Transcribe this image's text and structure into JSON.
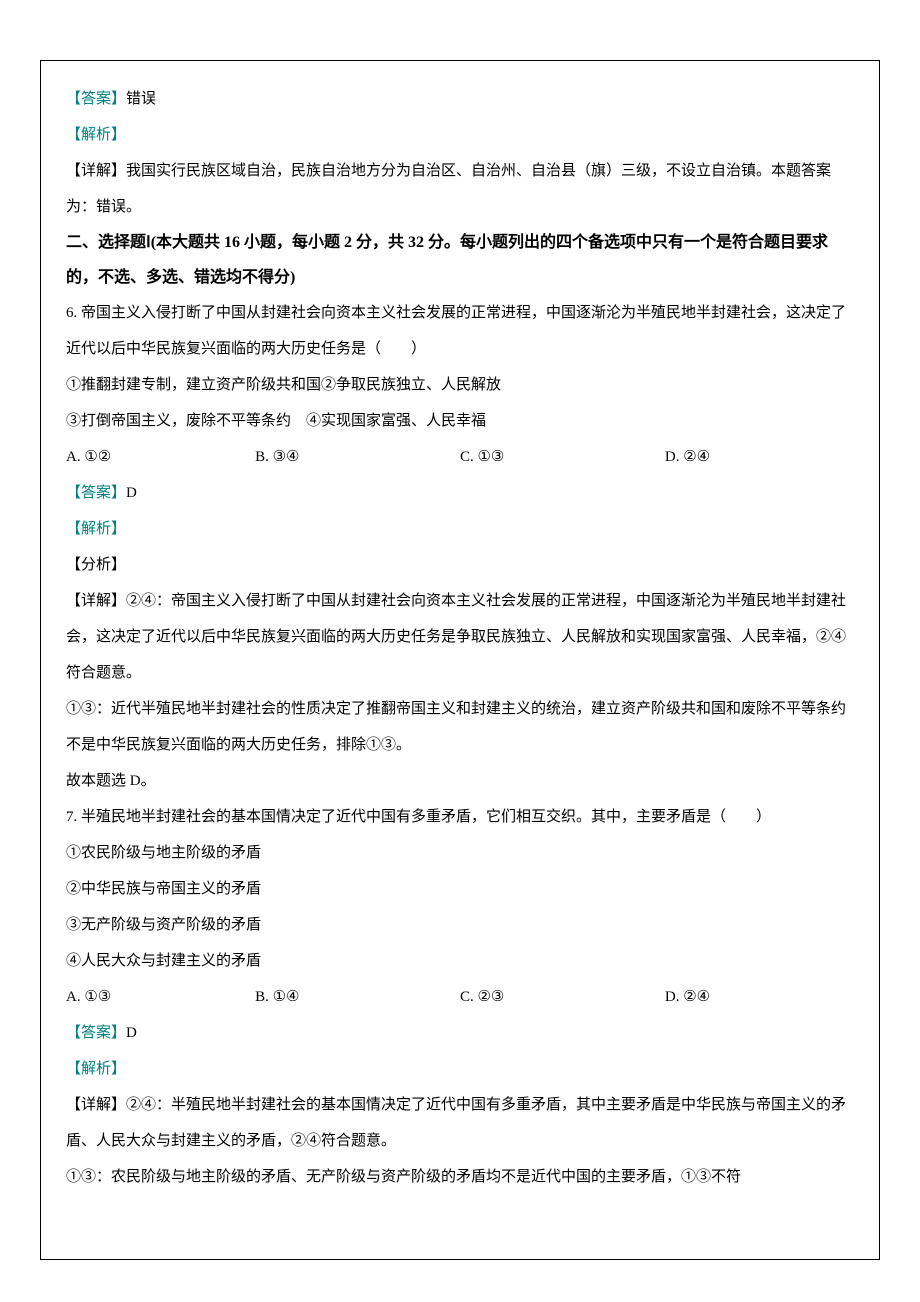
{
  "q5_answer": {
    "label": "【答案】",
    "value": "错误"
  },
  "q5_analysis_label": "【解析】",
  "q5_detail": "【详解】我国实行民族区域自治，民族自治地方分为自治区、自治州、自治县（旗）三级，不设立自治镇。本题答案为：错误。",
  "section2_header": "二、选择题Ⅰ(本大题共 16 小题，每小题 2 分，共 32 分。每小题列出的四个备选项中只有一个是符合题目要求的，不选、多选、错选均不得分)",
  "q6": {
    "stem1": "6. 帝国主义入侵打断了中国从封建社会向资本主义社会发展的正常进程，中国逐渐沦为半殖民地半封建社会，这决定了近代以后中华民族复兴面临的两大历史任务是（　　）",
    "stem2": "①推翻封建专制，建立资产阶级共和国②争取民族独立、人民解放",
    "stem3": "③打倒帝国主义，废除不平等条约　④实现国家富强、人民幸福",
    "options": {
      "a": "A. ①②",
      "b": "B. ③④",
      "c": "C. ①③",
      "d": "D. ②④"
    },
    "answer_label": "【答案】",
    "answer_value": "D",
    "analysis_label": "【解析】",
    "fenxi_label": "【分析】",
    "detail1": "【详解】②④：帝国主义入侵打断了中国从封建社会向资本主义社会发展的正常进程，中国逐渐沦为半殖民地半封建社会，这决定了近代以后中华民族复兴面临的两大历史任务是争取民族独立、人民解放和实现国家富强、人民幸福，②④符合题意。",
    "detail2": "①③：近代半殖民地半封建社会的性质决定了推翻帝国主义和封建主义的统治，建立资产阶级共和国和废除不平等条约不是中华民族复兴面临的两大历史任务，排除①③。",
    "detail3": "故本题选 D。"
  },
  "q7": {
    "stem1": "7. 半殖民地半封建社会的基本国情决定了近代中国有多重矛盾，它们相互交织。其中，主要矛盾是（　　）",
    "stem2": "①农民阶级与地主阶级的矛盾",
    "stem3": "②中华民族与帝国主义的矛盾",
    "stem4": "③无产阶级与资产阶级的矛盾",
    "stem5": "④人民大众与封建主义的矛盾",
    "options": {
      "a": "A. ①③",
      "b": "B. ①④",
      "c": "C. ②③",
      "d": "D. ②④"
    },
    "answer_label": "【答案】",
    "answer_value": "D",
    "analysis_label": "【解析】",
    "detail1": "【详解】②④：半殖民地半封建社会的基本国情决定了近代中国有多重矛盾，其中主要矛盾是中华民族与帝国主义的矛盾、人民大众与封建主义的矛盾，②④符合题意。",
    "detail2": "①③：农民阶级与地主阶级的矛盾、无产阶级与资产阶级的矛盾均不是近代中国的主要矛盾，①③不符"
  }
}
